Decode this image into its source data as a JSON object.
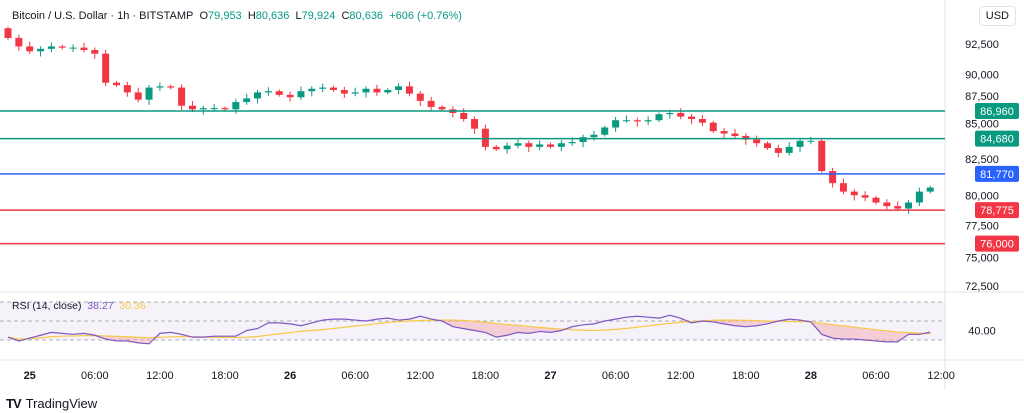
{
  "header": {
    "symbol": "Bitcoin / U.S. Dollar · 1h · BITSTAMP",
    "o_label": "O",
    "o": "79,953",
    "h_label": "H",
    "h": "80,636",
    "l_label": "L",
    "l": "79,924",
    "c_label": "C",
    "c": "80,636",
    "change": "+606 (+0.76%)",
    "currency": "USD"
  },
  "rsi": {
    "label": "RSI (14, close)",
    "value": "38.27",
    "ma_value": "30.36",
    "axis_label": "40.00"
  },
  "brand": "TradingView",
  "colors": {
    "up": "#089981",
    "down": "#f23645",
    "blue": "#2962ff",
    "rsi": "#7e57c2",
    "ma": "#f7c948"
  },
  "chart_data": {
    "type": "candlestick",
    "title": "Bitcoin / U.S. Dollar · 1h · BITSTAMP",
    "first_open": 93800,
    "closes": [
      93000,
      92300,
      91900,
      92100,
      92300,
      92200,
      92200,
      92000,
      91700,
      89300,
      89100,
      88500,
      87900,
      88900,
      89000,
      88900,
      87400,
      87100,
      87200,
      87200,
      87100,
      87700,
      88000,
      88500,
      88600,
      88300,
      88100,
      88600,
      88800,
      88900,
      88700,
      88400,
      88500,
      88800,
      88500,
      88700,
      89000,
      88400,
      87800,
      87300,
      87100,
      86800,
      86300,
      85500,
      84000,
      83800,
      84100,
      84300,
      84000,
      84200,
      84000,
      84300,
      84400,
      84800,
      85000,
      85600,
      86200,
      86200,
      86100,
      86200,
      86700,
      86800,
      86500,
      86300,
      86000,
      85300,
      85100,
      84900,
      84600,
      84300,
      83900,
      83500,
      84000,
      84500,
      84500,
      82000,
      81000,
      80300,
      80000,
      79800,
      79400,
      79100,
      78900,
      79400,
      80300,
      80636
    ],
    "y_ticks": [
      "92,500",
      "90,000",
      "87,500",
      "85,000",
      "82,500",
      "80,000",
      "77,500",
      "75,000",
      "72,500"
    ],
    "y_tick_values": [
      92500,
      90000,
      87500,
      85000,
      82500,
      80000,
      77500,
      75000,
      72500
    ],
    "ylim": [
      72000,
      93500
    ],
    "horizontal_levels": [
      {
        "label": "86,960",
        "value": 86960,
        "color": "#089981"
      },
      {
        "label": "84,680",
        "value": 84680,
        "color": "#089981"
      },
      {
        "label": "81,770",
        "value": 81770,
        "color": "#2962ff"
      },
      {
        "label": "78,775",
        "value": 78775,
        "color": "#f23645"
      },
      {
        "label": "76,000",
        "value": 76000,
        "color": "#f23645"
      }
    ],
    "x_ticks": [
      "25",
      "06:00",
      "12:00",
      "18:00",
      "26",
      "06:00",
      "12:00",
      "18:00",
      "27",
      "06:00",
      "12:00",
      "18:00",
      "28",
      "06:00",
      "12:00"
    ],
    "x_tick_hours": [
      2,
      8,
      14,
      20,
      26,
      32,
      38,
      44,
      50,
      56,
      62,
      68,
      74,
      80,
      86
    ],
    "rsi_values": [
      33,
      29,
      32,
      35,
      38,
      37,
      36,
      37,
      35,
      31,
      29,
      29,
      27,
      26,
      37,
      38,
      36,
      33,
      33,
      34,
      34,
      34,
      40,
      42,
      48,
      48,
      47,
      45,
      48,
      51,
      52,
      52,
      51,
      50,
      52,
      53,
      51,
      52,
      55,
      52,
      50,
      44,
      42,
      40,
      38,
      33,
      35,
      38,
      37,
      39,
      38,
      40,
      44,
      46,
      47,
      50,
      52,
      54,
      55,
      54,
      53,
      56,
      53,
      48,
      50,
      49,
      47,
      45,
      44,
      45,
      47,
      50,
      52,
      51,
      49,
      36,
      32,
      31,
      31,
      30,
      29,
      28,
      28,
      36,
      36,
      38.27
    ],
    "rsi_levels": [
      70,
      50,
      30
    ]
  }
}
